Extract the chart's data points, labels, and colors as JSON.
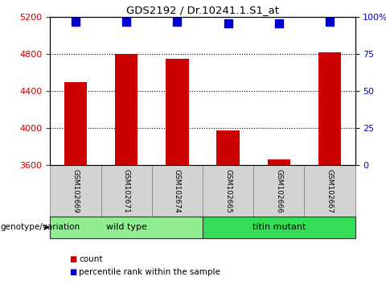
{
  "title": "GDS2192 / Dr.10241.1.S1_at",
  "samples": [
    "GSM102669",
    "GSM102671",
    "GSM102674",
    "GSM102665",
    "GSM102666",
    "GSM102667"
  ],
  "counts": [
    4500,
    4800,
    4750,
    3980,
    3660,
    4820
  ],
  "percentile_ranks": [
    97,
    97,
    97,
    96,
    96,
    97
  ],
  "ylim_left": [
    3600,
    5200
  ],
  "ylim_right": [
    0,
    100
  ],
  "yticks_left": [
    3600,
    4000,
    4400,
    4800,
    5200
  ],
  "yticks_right": [
    0,
    25,
    50,
    75,
    100
  ],
  "bar_color": "#cc0000",
  "dot_color": "#0000cc",
  "groups": [
    {
      "label": "wild type",
      "indices": [
        0,
        1,
        2
      ],
      "color": "#90ee90"
    },
    {
      "label": "titin mutant",
      "indices": [
        3,
        4,
        5
      ],
      "color": "#33dd55"
    }
  ],
  "genotype_label": "genotype/variation",
  "legend_count_color": "#cc0000",
  "legend_dot_color": "#0000cc",
  "bar_width": 0.45,
  "dot_size": 50,
  "tick_label_color_left": "#cc0000",
  "tick_label_color_right": "#0000cc"
}
